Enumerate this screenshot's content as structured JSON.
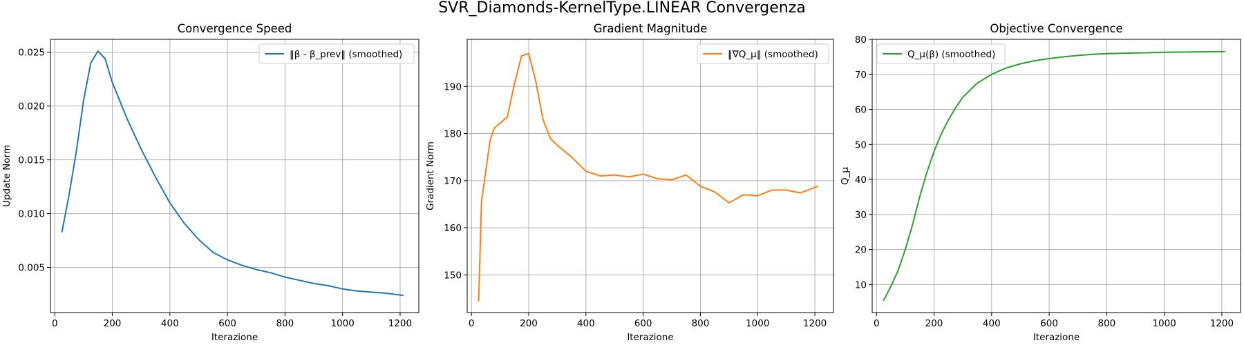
{
  "figure": {
    "title": "SVR_Diamonds-KernelType.LINEAR Convergenza"
  },
  "chart_data": [
    {
      "type": "line",
      "title": "Convergence Speed",
      "xlabel": "Iterazione",
      "ylabel": "Update Norm",
      "xlim": [
        -15,
        1265
      ],
      "ylim": [
        0.0008,
        0.0262
      ],
      "xticks": [
        0,
        200,
        400,
        600,
        800,
        1000,
        1200
      ],
      "xtick_labels": [
        "0",
        "200",
        "400",
        "600",
        "800",
        "1000",
        "1200"
      ],
      "yticks": [
        0.005,
        0.01,
        0.015,
        0.02,
        0.025
      ],
      "ytick_labels": [
        "0.005",
        "0.010",
        "0.015",
        "0.020",
        "0.025"
      ],
      "grid": true,
      "legend": "upper right",
      "series": [
        {
          "name": "‖β - β_prev‖ (smoothed)",
          "color": "#1f77b4",
          "x": [
            25,
            50,
            75,
            100,
            125,
            150,
            175,
            200,
            250,
            300,
            350,
            400,
            450,
            500,
            550,
            600,
            650,
            700,
            750,
            800,
            850,
            900,
            950,
            1000,
            1050,
            1100,
            1150,
            1210
          ],
          "y": [
            0.0083,
            0.0118,
            0.0158,
            0.0205,
            0.024,
            0.0251,
            0.0244,
            0.0222,
            0.0189,
            0.016,
            0.0134,
            0.011,
            0.0091,
            0.0076,
            0.0064,
            0.0057,
            0.0052,
            0.0048,
            0.0045,
            0.0041,
            0.0038,
            0.0035,
            0.0033,
            0.003,
            0.0028,
            0.0027,
            0.0026,
            0.0024
          ]
        }
      ]
    },
    {
      "type": "line",
      "title": "Gradient Magnitude",
      "xlabel": "Iterazione",
      "ylabel": "Gradient Norm",
      "xlim": [
        -15,
        1265
      ],
      "ylim": [
        142,
        200
      ],
      "xticks": [
        0,
        200,
        400,
        600,
        800,
        1000,
        1200
      ],
      "xtick_labels": [
        "0",
        "200",
        "400",
        "600",
        "800",
        "1000",
        "1200"
      ],
      "yticks": [
        150,
        160,
        170,
        180,
        190
      ],
      "ytick_labels": [
        "150",
        "160",
        "170",
        "180",
        "190"
      ],
      "grid": true,
      "legend": "upper right",
      "series": [
        {
          "name": "‖∇Q_μ‖ (smoothed)",
          "color": "#ff7f0e",
          "x": [
            25,
            35,
            50,
            65,
            80,
            100,
            125,
            150,
            175,
            200,
            225,
            250,
            275,
            300,
            350,
            400,
            450,
            500,
            550,
            600,
            650,
            700,
            750,
            800,
            850,
            900,
            950,
            1000,
            1050,
            1100,
            1150,
            1210
          ],
          "y": [
            144.5,
            165.5,
            172,
            178.5,
            181.2,
            182.2,
            183.5,
            190.5,
            196.5,
            197,
            191,
            183,
            179,
            177.5,
            175,
            172,
            171,
            171.2,
            170.8,
            171.4,
            170.4,
            170.2,
            171.2,
            168.8,
            167.6,
            165.3,
            167,
            166.8,
            168,
            168,
            167.4,
            168.8
          ]
        }
      ]
    },
    {
      "type": "line",
      "title": "Objective Convergence",
      "xlabel": "Iterazione",
      "ylabel": "Q_μ",
      "xlim": [
        -15,
        1265
      ],
      "ylim": [
        2,
        80
      ],
      "xticks": [
        0,
        200,
        400,
        600,
        800,
        1000,
        1200
      ],
      "xtick_labels": [
        "0",
        "200",
        "400",
        "600",
        "800",
        "1000",
        "1200"
      ],
      "yticks": [
        10,
        20,
        30,
        40,
        50,
        60,
        70,
        80
      ],
      "ytick_labels": [
        "10",
        "20",
        "30",
        "40",
        "50",
        "60",
        "70",
        "80"
      ],
      "grid": true,
      "legend": "upper left",
      "series": [
        {
          "name": "Q_μ(β) (smoothed)",
          "color": "#2ca02c",
          "x": [
            25,
            50,
            75,
            100,
            125,
            150,
            175,
            200,
            225,
            250,
            275,
            300,
            350,
            400,
            450,
            500,
            550,
            600,
            650,
            700,
            750,
            800,
            850,
            900,
            1000,
            1100,
            1210
          ],
          "y": [
            5.5,
            9.5,
            14,
            20,
            27,
            35,
            42,
            48,
            53,
            57,
            60.5,
            63.5,
            67.5,
            70,
            71.8,
            73,
            73.9,
            74.5,
            75,
            75.4,
            75.7,
            75.9,
            76,
            76.1,
            76.3,
            76.4,
            76.5
          ]
        }
      ]
    }
  ]
}
